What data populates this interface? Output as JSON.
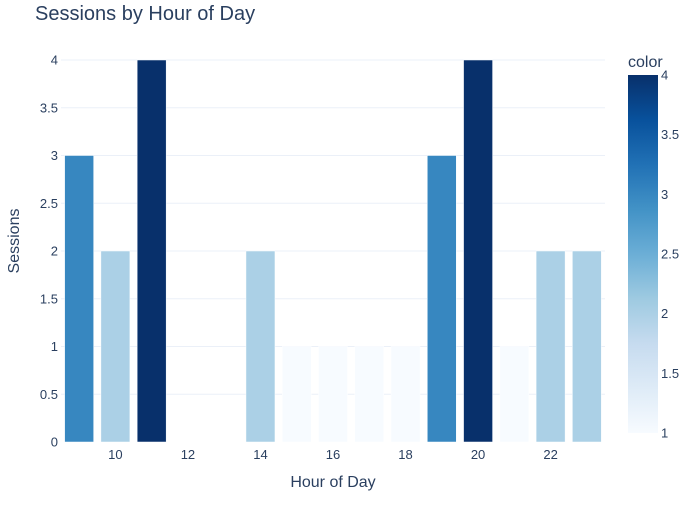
{
  "chart_data": {
    "type": "bar",
    "title": "Sessions by Hour of Day",
    "xlabel": "Hour of Day",
    "ylabel": "Sessions",
    "x": [
      9,
      10,
      11,
      12,
      13,
      14,
      15,
      16,
      17,
      18,
      19,
      20,
      21,
      22,
      23
    ],
    "values": [
      3,
      2,
      4,
      0,
      0,
      2,
      1,
      1,
      1,
      1,
      3,
      4,
      1,
      2,
      2
    ],
    "xlim": [
      8.5,
      23.5
    ],
    "ylim": [
      0,
      4
    ],
    "x_ticks": [
      10,
      12,
      14,
      16,
      18,
      20,
      22
    ],
    "y_ticks": [
      0,
      0.5,
      1,
      1.5,
      2,
      2.5,
      3,
      3.5,
      4
    ],
    "grid": true,
    "colorscale": "Blues",
    "colorbar": {
      "title": "color",
      "range": [
        1,
        4
      ],
      "ticks": [
        1,
        1.5,
        2,
        2.5,
        3,
        3.5,
        4
      ],
      "placement": "right"
    }
  }
}
